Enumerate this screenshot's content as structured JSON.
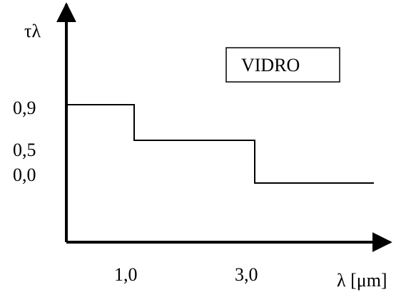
{
  "chart_data": {
    "type": "line",
    "step": true,
    "ylabel": "τλ",
    "xlabel": "λ [μm]",
    "x_ticks": [
      "1,0",
      "3,0"
    ],
    "y_ticks": [
      "0,9",
      "0,5",
      "0,0"
    ],
    "series": [
      {
        "points": [
          {
            "x": 0,
            "y": 0.9
          },
          {
            "x": 1.0,
            "y": 0.9
          },
          {
            "x": 1.0,
            "y": 0.5
          },
          {
            "x": 3.0,
            "y": 0.5
          },
          {
            "x": 3.0,
            "y": 0.0
          },
          {
            "x": 5.0,
            "y": 0.0
          }
        ]
      }
    ],
    "annotation": "VIDRO",
    "colors": {
      "line": "#000000",
      "axis": "#000000",
      "background": "#ffffff"
    }
  }
}
